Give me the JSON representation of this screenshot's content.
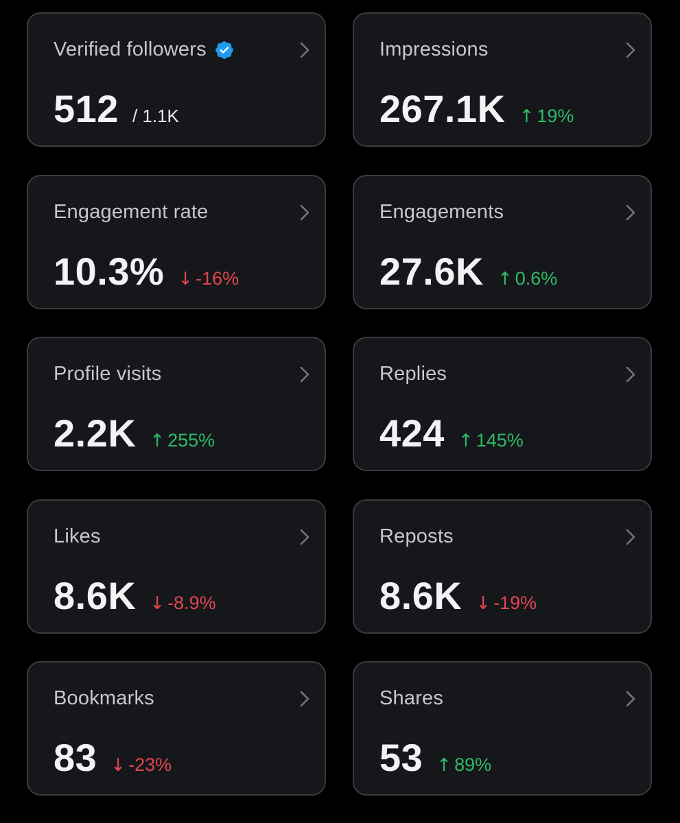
{
  "colors": {
    "background": "#000000",
    "card_background": "#16171b",
    "card_border": "#3a3b3f",
    "label": "#c6c8cc",
    "value": "#f2f3f4",
    "up": "#2fba67",
    "down": "#e0464f",
    "verified_badge": "#1d9bf0"
  },
  "cards": {
    "verified_followers": {
      "label": "Verified followers",
      "value": "512",
      "total": "/ 1.1K",
      "badge_icon": "verified-badge-icon",
      "nav_icon": "chevron-right-icon"
    },
    "impressions": {
      "label": "Impressions",
      "value": "267.1K",
      "change": "19%",
      "direction": "up",
      "arrow": "↑",
      "nav_icon": "chevron-right-icon"
    },
    "engagement_rate": {
      "label": "Engagement rate",
      "value": "10.3%",
      "change": "-16%",
      "direction": "down",
      "arrow": "↓",
      "nav_icon": "chevron-right-icon"
    },
    "engagements": {
      "label": "Engagements",
      "value": "27.6K",
      "change": "0.6%",
      "direction": "up",
      "arrow": "↑",
      "nav_icon": "chevron-right-icon"
    },
    "profile_visits": {
      "label": "Profile visits",
      "value": "2.2K",
      "change": "255%",
      "direction": "up",
      "arrow": "↑",
      "nav_icon": "chevron-right-icon"
    },
    "replies": {
      "label": "Replies",
      "value": "424",
      "change": "145%",
      "direction": "up",
      "arrow": "↑",
      "nav_icon": "chevron-right-icon"
    },
    "likes": {
      "label": "Likes",
      "value": "8.6K",
      "change": "-8.9%",
      "direction": "down",
      "arrow": "↓",
      "nav_icon": "chevron-right-icon"
    },
    "reposts": {
      "label": "Reposts",
      "value": "8.6K",
      "change": "-19%",
      "direction": "down",
      "arrow": "↓",
      "nav_icon": "chevron-right-icon"
    },
    "bookmarks": {
      "label": "Bookmarks",
      "value": "83",
      "change": "-23%",
      "direction": "down",
      "arrow": "↓",
      "nav_icon": "chevron-right-icon"
    },
    "shares": {
      "label": "Shares",
      "value": "53",
      "change": "89%",
      "direction": "up",
      "arrow": "↑",
      "nav_icon": "chevron-right-icon"
    }
  }
}
